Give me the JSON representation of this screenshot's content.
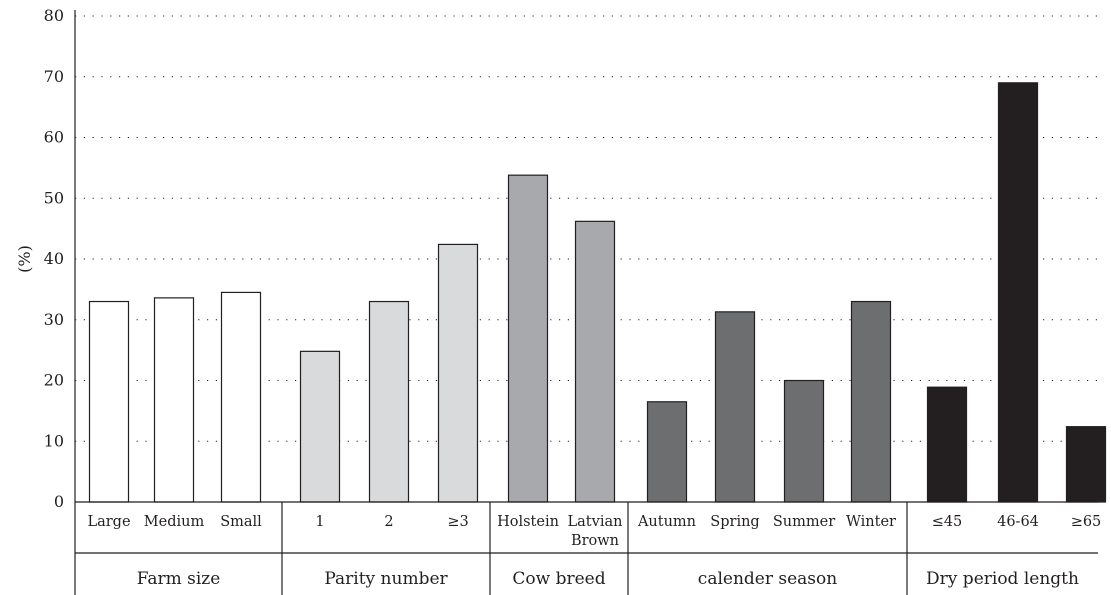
{
  "chart_data": {
    "type": "bar",
    "ylabel": "(%)",
    "ylim": [
      0,
      80
    ],
    "yticks": [
      0,
      10,
      20,
      30,
      40,
      50,
      60,
      70,
      80
    ],
    "grid": true,
    "groups": [
      {
        "name": "Farm size",
        "color": "#ffffff",
        "categories": [
          "Large",
          "Medium",
          "Small"
        ],
        "values": [
          33.0,
          33.6,
          34.5
        ]
      },
      {
        "name": "Parity number",
        "color": "#d9dadb",
        "categories": [
          "1",
          "2",
          "≥3"
        ],
        "values": [
          24.8,
          33.0,
          42.4
        ]
      },
      {
        "name": "Cow breed",
        "color": "#a7a9ac",
        "categories": [
          "Holstein",
          "Latvian Brown"
        ],
        "values": [
          53.8,
          46.2
        ]
      },
      {
        "name": "calender season",
        "color": "#6d6e70",
        "categories": [
          "Autumn",
          "Spring",
          "Summer",
          "Winter"
        ],
        "values": [
          16.5,
          31.3,
          20.0,
          33.0
        ]
      },
      {
        "name": "Dry period length",
        "color": "#231f20",
        "categories": [
          "≤45",
          "46-64",
          "≥65"
        ],
        "values": [
          18.9,
          69.0,
          12.4
        ]
      }
    ]
  }
}
